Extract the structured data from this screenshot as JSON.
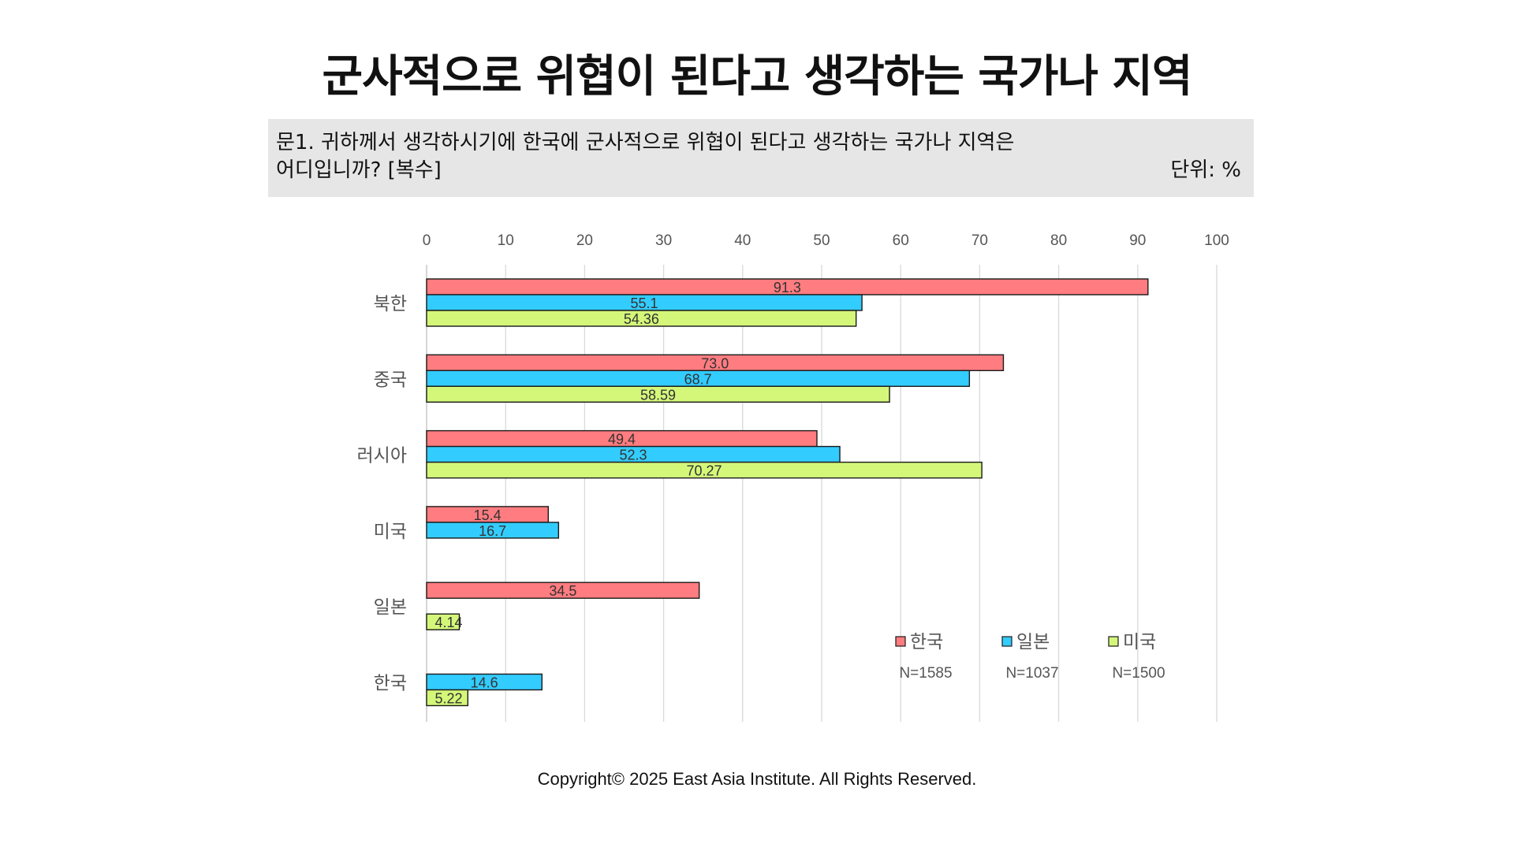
{
  "title": "군사적으로 위협이 된다고 생각하는 국가나 지역",
  "question": {
    "line1": "문1. 귀하께서 생각하시기에 한국에 군사적으로 위협이 된다고 생각하는 국가나 지역은",
    "line2": "어디입니까? [복수]",
    "unit": "단위: %"
  },
  "copyright": "Copyright© 2025 East Asia Institute. All Rights Reserved.",
  "colors": {
    "한국": "#ff7c80",
    "일본": "#33ccff",
    "미국": "#d4f77a",
    "grid": "#d9d9d9",
    "outline": "#1a1a1a"
  },
  "chart_data": {
    "type": "bar",
    "orientation": "horizontal",
    "xlim": [
      0,
      100
    ],
    "xticks": [
      "0",
      "10",
      "20",
      "30",
      "40",
      "50",
      "60",
      "70",
      "80",
      "90",
      "100"
    ],
    "categories": [
      "북한",
      "중국",
      "러시아",
      "미국",
      "일본",
      "한국"
    ],
    "series": [
      {
        "name": "한국",
        "n": "N=1585",
        "values": [
          91.3,
          73.0,
          49.4,
          15.4,
          34.5,
          null
        ],
        "labels": [
          "91.3",
          "73.0",
          "49.4",
          "15.4",
          "34.5",
          ""
        ]
      },
      {
        "name": "일본",
        "n": "N=1037",
        "values": [
          55.1,
          68.7,
          52.3,
          16.7,
          null,
          14.6
        ],
        "labels": [
          "55.1",
          "68.7",
          "52.3",
          "16.7",
          "",
          "14.6"
        ]
      },
      {
        "name": "미국",
        "n": "N=1500",
        "values": [
          54.36,
          58.59,
          70.27,
          null,
          4.14,
          5.22
        ],
        "labels": [
          "54.36",
          "58.59",
          "70.27",
          "",
          "4.14",
          "5.22"
        ]
      }
    ],
    "grid": true,
    "legend": "bottom-right"
  }
}
